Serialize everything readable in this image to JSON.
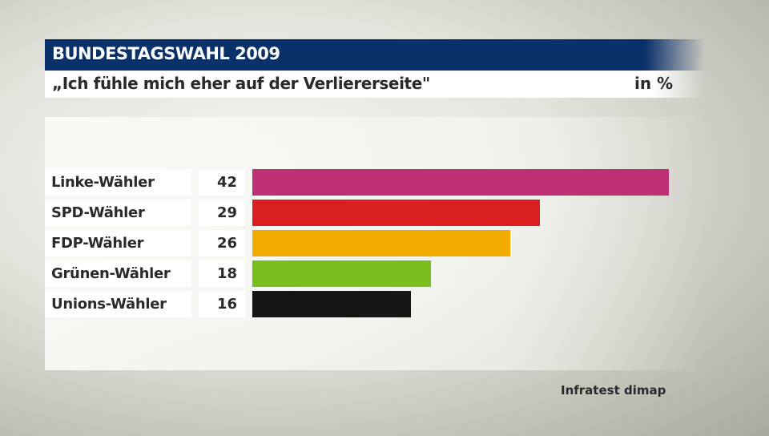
{
  "chart_data": {
    "type": "bar",
    "orientation": "horizontal",
    "title": "BUNDESTAGSWAHL 2009",
    "subtitle": "„Ich fühle mich eher auf der Verliererseite\"",
    "unit": "in %",
    "categories": [
      "Linke-Wähler",
      "SPD-Wähler",
      "FDP-Wähler",
      "Grünen-Wähler",
      "Unions-Wähler"
    ],
    "values": [
      42,
      29,
      26,
      18,
      16
    ],
    "colors": [
      "#be3075",
      "#d91f1f",
      "#f2ab00",
      "#7abe1e",
      "#151515"
    ],
    "xlim": [
      0,
      42
    ],
    "grid": false,
    "source": "Infratest dimap"
  }
}
